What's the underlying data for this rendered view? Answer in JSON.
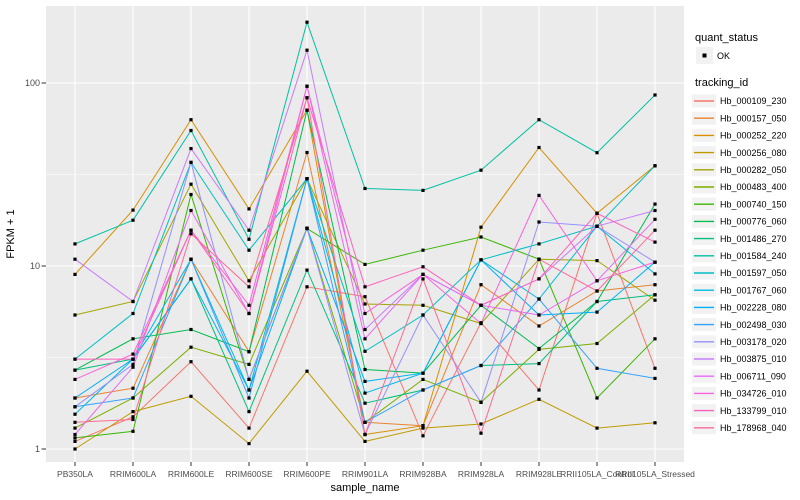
{
  "chart_data": {
    "type": "line",
    "title": "",
    "xlabel": "sample_name",
    "ylabel": "FPKM + 1",
    "y_scale": "log10",
    "y_ticks": [
      1,
      10,
      100
    ],
    "y_minor_ticks": [
      3.162,
      31.62
    ],
    "ylim": [
      0.85,
      260
    ],
    "grid": true,
    "panel_bg": "#EBEBEB",
    "grid_color": "#FFFFFF",
    "tick_color": "#333333",
    "tick_label_color": "#4D4D4D",
    "point_color": "#000000",
    "legend_key_bg": "#F2F2F2",
    "categories": [
      "PB350LA",
      "RRIM600LA",
      "RRIM600LE",
      "RRIM600SE",
      "RRIM600PE",
      "RRIM901LA",
      "RRIM928BA",
      "RRIM928LA",
      "RRIM928LE",
      "RRII105LA_Control",
      "RRII105LA_Stressed"
    ],
    "legend": {
      "position": "right",
      "quant_status": {
        "title": "quant_status",
        "items": [
          {
            "label": "OK",
            "marker": "point-icon",
            "color": "#000000"
          }
        ]
      },
      "tracking_id": {
        "title": "tracking_id"
      }
    },
    "series": [
      {
        "name": "Hb_000109_230",
        "color": "#F8766D",
        "values": [
          1.1,
          1.5,
          3.0,
          1.3,
          7.7,
          6.8,
          1.18,
          4.9,
          2.1,
          19.4,
          2.76
        ]
      },
      {
        "name": "Hb_000157_050",
        "color": "#EA8331",
        "values": [
          1.9,
          2.15,
          10.9,
          3.4,
          41.7,
          1.4,
          1.34,
          7.9,
          4.7,
          7.3,
          7.9
        ]
      },
      {
        "name": "Hb_000252_220",
        "color": "#D89000",
        "values": [
          9.0,
          20.2,
          63,
          20.5,
          71,
          1.2,
          1.34,
          16.3,
          44.4,
          19.4,
          35.3
        ]
      },
      {
        "name": "Hb_000256_080",
        "color": "#C09B00",
        "values": [
          1.0,
          1.6,
          1.94,
          1.07,
          2.66,
          1.1,
          1.3,
          1.37,
          1.87,
          1.3,
          1.39
        ]
      },
      {
        "name": "Hb_000282_050",
        "color": "#A3A500",
        "values": [
          5.4,
          6.4,
          28,
          8.3,
          30,
          6.2,
          6.1,
          4.85,
          10.9,
          10.7,
          6.5
        ]
      },
      {
        "name": "Hb_000483_400",
        "color": "#7CAE00",
        "values": [
          1.3,
          1.9,
          3.6,
          2.9,
          16.1,
          1.4,
          2.4,
          1.8,
          3.5,
          3.77,
          6.96
        ]
      },
      {
        "name": "Hb_000740_150",
        "color": "#39B600",
        "values": [
          1.15,
          1.25,
          24.6,
          2.4,
          16.0,
          10.2,
          12.2,
          14.4,
          10.9,
          1.9,
          4.0
        ]
      },
      {
        "name": "Hb_000776_060",
        "color": "#00BB4E",
        "values": [
          2.7,
          4.0,
          4.5,
          3.4,
          71,
          2.72,
          2.6,
          6.1,
          3.54,
          6.4,
          21.8
        ]
      },
      {
        "name": "Hb_001486_270",
        "color": "#00BF7D",
        "values": [
          2.7,
          3.1,
          8.5,
          1.6,
          9.5,
          1.78,
          2.1,
          2.86,
          2.93,
          6.4,
          6.96
        ]
      },
      {
        "name": "Hb_001584_240",
        "color": "#00C1A3",
        "values": [
          13.2,
          17.8,
          55,
          14,
          215,
          26.5,
          25.9,
          33.4,
          63,
          41.6,
          86
        ]
      },
      {
        "name": "Hb_001597_050",
        "color": "#00BFC4",
        "values": [
          3.1,
          5.5,
          36.8,
          12.2,
          30,
          3.42,
          5.4,
          10.8,
          13.2,
          16.5,
          35.3
        ]
      },
      {
        "name": "Hb_001767_060",
        "color": "#00BAE0",
        "values": [
          1.55,
          3.1,
          10.9,
          2.1,
          30,
          2.02,
          2.6,
          10.8,
          6.6,
          16.5,
          9.05
        ]
      },
      {
        "name": "Hb_002228_080",
        "color": "#00B0F6",
        "values": [
          1.9,
          3.1,
          8.5,
          2.1,
          16.1,
          2.34,
          2.6,
          10.8,
          5.4,
          5.6,
          10.5
        ]
      },
      {
        "name": "Hb_002498_030",
        "color": "#35A2FF",
        "values": [
          1.7,
          1.9,
          10.9,
          1.9,
          30,
          1.4,
          2.1,
          2.86,
          6.6,
          2.76,
          2.43
        ]
      },
      {
        "name": "Hb_003178_020",
        "color": "#9590FF",
        "values": [
          1.7,
          2.9,
          36.8,
          2.4,
          16.1,
          1.2,
          5.4,
          1.8,
          17.4,
          16.5,
          10.5
        ]
      },
      {
        "name": "Hb_003875_010",
        "color": "#C77CFF",
        "values": [
          10.9,
          6.4,
          43.8,
          15.7,
          151,
          4.5,
          9.0,
          6.1,
          8.5,
          16.5,
          20.1
        ]
      },
      {
        "name": "Hb_006711_090",
        "color": "#E76BF3",
        "values": [
          1.2,
          2.8,
          20.1,
          5.5,
          96,
          4.0,
          9.0,
          6.1,
          5.4,
          8.3,
          18.0
        ]
      },
      {
        "name": "Hb_034726_010",
        "color": "#FA62DB",
        "values": [
          2.4,
          3.3,
          15.7,
          6.1,
          96,
          5.5,
          9.0,
          4.85,
          24.3,
          8.3,
          10.5
        ]
      },
      {
        "name": "Hb_133799_010",
        "color": "#FF62BC",
        "values": [
          3.1,
          3.1,
          15.7,
          5.5,
          83,
          7.7,
          9.9,
          6.1,
          8.5,
          19.4,
          13.5
        ]
      },
      {
        "name": "Hb_178968_040",
        "color": "#FF6A98",
        "values": [
          1.4,
          1.45,
          15.0,
          7.7,
          83,
          1.2,
          8.5,
          1.22,
          10.9,
          7.3,
          15.7
        ]
      }
    ]
  }
}
